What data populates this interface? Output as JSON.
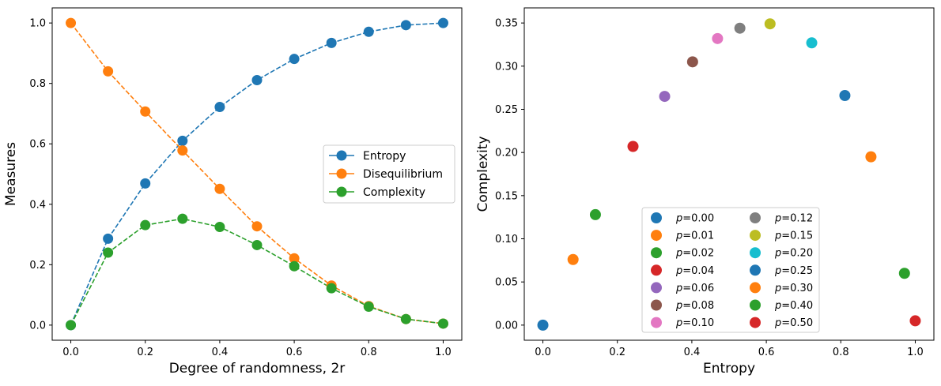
{
  "chart_data": [
    {
      "type": "line",
      "xlabel": "Degree of randomness, 2r",
      "ylabel": "Measures",
      "xlim": [
        -0.05,
        1.05
      ],
      "ylim": [
        -0.05,
        1.05
      ],
      "xticks": [
        "0.0",
        "0.2",
        "0.4",
        "0.6",
        "0.8",
        "1.0"
      ],
      "yticks": [
        "0.0",
        "0.2",
        "0.4",
        "0.6",
        "0.8",
        "1.0"
      ],
      "legend_position": "center-right",
      "x": [
        0.0,
        0.1,
        0.2,
        0.3,
        0.4,
        0.5,
        0.6,
        0.7,
        0.8,
        0.9,
        1.0
      ],
      "series": [
        {
          "name": "Entropy",
          "color": "#1f77b4",
          "values": [
            0.0,
            0.286,
            0.469,
            0.61,
            0.722,
            0.811,
            0.881,
            0.934,
            0.971,
            0.993,
            1.0
          ]
        },
        {
          "name": "Disequilibrium",
          "color": "#ff7f0e",
          "values": [
            1.0,
            0.84,
            0.707,
            0.578,
            0.451,
            0.327,
            0.221,
            0.131,
            0.063,
            0.02,
            0.005
          ]
        },
        {
          "name": "Complexity",
          "color": "#2ca02c",
          "values": [
            0.0,
            0.24,
            0.331,
            0.352,
            0.325,
            0.265,
            0.195,
            0.122,
            0.061,
            0.02,
            0.005
          ]
        }
      ]
    },
    {
      "type": "scatter",
      "xlabel": "Entropy",
      "ylabel": "Complexity",
      "xlim": [
        -0.05,
        1.05
      ],
      "ylim": [
        -0.0175,
        0.3675
      ],
      "xticks": [
        "0.0",
        "0.2",
        "0.4",
        "0.6",
        "0.8",
        "1.0"
      ],
      "yticks": [
        "0.00",
        "0.05",
        "0.10",
        "0.15",
        "0.20",
        "0.25",
        "0.30",
        "0.35"
      ],
      "legend_position": "lower-center",
      "series": [
        {
          "name": "p=0.00",
          "color": "#1f77b4",
          "x": 0.0,
          "y": 0.0
        },
        {
          "name": "p=0.01",
          "color": "#ff7f0e",
          "x": 0.081,
          "y": 0.076
        },
        {
          "name": "p=0.02",
          "color": "#2ca02c",
          "x": 0.141,
          "y": 0.128
        },
        {
          "name": "p=0.04",
          "color": "#d62728",
          "x": 0.242,
          "y": 0.207
        },
        {
          "name": "p=0.06",
          "color": "#9467bd",
          "x": 0.327,
          "y": 0.265
        },
        {
          "name": "p=0.08",
          "color": "#8c564b",
          "x": 0.402,
          "y": 0.305
        },
        {
          "name": "p=0.10",
          "color": "#e377c2",
          "x": 0.469,
          "y": 0.332
        },
        {
          "name": "p=0.12",
          "color": "#7f7f7f",
          "x": 0.529,
          "y": 0.344
        },
        {
          "name": "p=0.15",
          "color": "#bcbd22",
          "x": 0.61,
          "y": 0.349
        },
        {
          "name": "p=0.20",
          "color": "#17becf",
          "x": 0.722,
          "y": 0.327
        },
        {
          "name": "p=0.25",
          "color": "#1f77b4",
          "x": 0.811,
          "y": 0.266
        },
        {
          "name": "p=0.30",
          "color": "#ff7f0e",
          "x": 0.881,
          "y": 0.195
        },
        {
          "name": "p=0.40",
          "color": "#2ca02c",
          "x": 0.971,
          "y": 0.06
        },
        {
          "name": "p=0.50",
          "color": "#d62728",
          "x": 1.0,
          "y": 0.005
        }
      ]
    }
  ]
}
